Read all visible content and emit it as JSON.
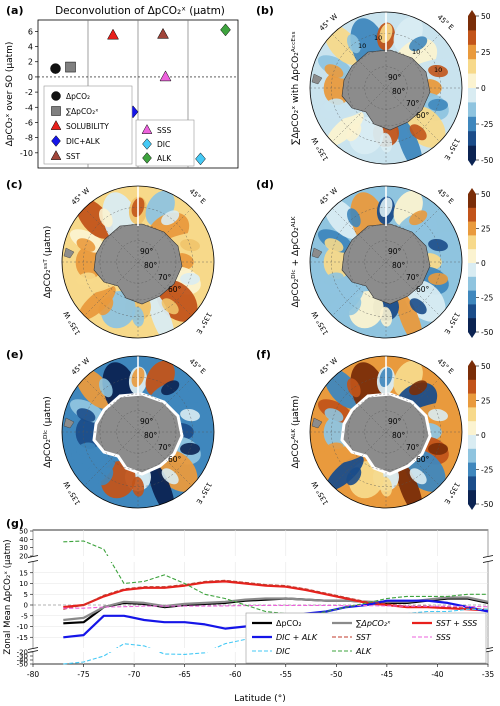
{
  "chart_data": [
    {
      "id": "a",
      "type": "scatter",
      "panel_label": "(a)",
      "title": "Deconvolution of ΔpCO₂ˣ (μatm)",
      "ylabel": "ΔpCO₂ˣ over SO (μatm)",
      "ylim": [
        -12,
        7.5
      ],
      "yticks": [
        -10,
        -8,
        -6,
        -4,
        -2,
        0,
        2,
        4,
        6
      ],
      "points": [
        {
          "name": "ΔpCO₂",
          "x": 0.35,
          "y": 1.1,
          "marker": "circle",
          "color": "#111111"
        },
        {
          "name": "∑ΔpCO₂ˣ",
          "x": 0.65,
          "y": 1.3,
          "marker": "square",
          "color": "#808080"
        },
        {
          "name": "SOLUBILITY",
          "x": 1.5,
          "y": 5.5,
          "marker": "triangle",
          "color": "#e8201c"
        },
        {
          "name": "SST",
          "x": 2.5,
          "y": 5.6,
          "marker": "triangle",
          "color": "#a0453a"
        },
        {
          "name": "SSS",
          "x": 2.55,
          "y": 0.0,
          "marker": "triangle",
          "color": "#ee62dd"
        },
        {
          "name": "DIC+ALK",
          "x": 1.9,
          "y": -4.6,
          "marker": "diamond",
          "color": "#1515e8"
        },
        {
          "name": "DIC",
          "x": 3.25,
          "y": -10.8,
          "marker": "diamond",
          "color": "#45c9f5"
        },
        {
          "name": "ALK",
          "x": 3.75,
          "y": 6.2,
          "marker": "diamond",
          "color": "#3ea33e"
        }
      ],
      "legend_left": [
        {
          "label": "ΔpCO₂",
          "marker": "circle",
          "color": "#111111"
        },
        {
          "label": "∑ΔpCO₂ˣ",
          "marker": "square",
          "color": "#808080"
        },
        {
          "label": "SOLUBILITY",
          "marker": "triangle",
          "color": "#e8201c"
        },
        {
          "label": "DIC+ALK",
          "marker": "diamond",
          "color": "#1515e8"
        },
        {
          "label": "SST",
          "marker": "triangle",
          "color": "#a0453a"
        }
      ],
      "legend_right": [
        {
          "label": "SSS",
          "marker": "triangle",
          "color": "#ee62dd"
        },
        {
          "label": "DIC",
          "marker": "diamond",
          "color": "#45c9f5"
        },
        {
          "label": "ALK",
          "marker": "diamond",
          "color": "#3ea33e"
        }
      ]
    },
    {
      "id": "g",
      "type": "line",
      "panel_label": "(g)",
      "xlabel": "Latitude (°)",
      "ylabel": "Zonal Mean ΔpCO₂ˣ (μatm)",
      "xlim": [
        -80,
        -35
      ],
      "xticks": [
        -80,
        -75,
        -70,
        -65,
        -60,
        -55,
        -50,
        -45,
        -40,
        -35
      ],
      "yticks_top": [
        20,
        30,
        40,
        50
      ],
      "yticks_mid": [
        -20,
        -15,
        -10,
        -5,
        0,
        5,
        10,
        15,
        20
      ],
      "yticks_bot": [
        -50,
        -40,
        -30,
        -20
      ],
      "x": [
        -77,
        -75,
        -73,
        -71,
        -69,
        -67,
        -65,
        -63,
        -61,
        -59,
        -57,
        -55,
        -53,
        -51,
        -49,
        -47,
        -45,
        -43,
        -41,
        -39,
        -37,
        -35
      ],
      "series": [
        {
          "name": "ΔpCO₂",
          "color": "#000000",
          "width": 2.2,
          "dash": "",
          "values": [
            -8.5,
            -8,
            -1,
            1,
            0.5,
            -1,
            0,
            0.5,
            1,
            2,
            2.5,
            3,
            2.5,
            2,
            2,
            1.5,
            1,
            1,
            2,
            3,
            3,
            1
          ]
        },
        {
          "name": "∑ΔpCO₂ˣ",
          "color": "#8a8a8a",
          "width": 2.2,
          "dash": "",
          "values": [
            -7,
            -6,
            -1,
            1.5,
            1,
            -0.5,
            0.5,
            1,
            1.5,
            2.5,
            3,
            3,
            2.5,
            2,
            2,
            1.5,
            1.5,
            1.5,
            2.5,
            3.5,
            3.5,
            1.5
          ]
        },
        {
          "name": "SST + SSS",
          "color": "#e8201c",
          "width": 2.2,
          "dash": "",
          "values": [
            -1,
            0,
            4,
            7,
            8,
            8,
            9,
            10.5,
            11,
            10,
            9,
            8.5,
            7,
            5,
            3,
            1,
            0,
            -1,
            -1,
            -1.5,
            -2,
            -2.5
          ]
        },
        {
          "name": "DIC + ALK",
          "color": "#1515e8",
          "width": 2.2,
          "dash": "",
          "values": [
            -15,
            -14,
            -5,
            -5,
            -7,
            -8,
            -8,
            -9,
            -11,
            -10,
            -9,
            -6,
            -4,
            -3,
            -1,
            0,
            2,
            2,
            2,
            1,
            -1,
            -3
          ]
        },
        {
          "name": "SST",
          "color": "#c0392b",
          "width": 1.1,
          "dash": "4,2",
          "values": [
            -2,
            0,
            4.5,
            7.5,
            8.5,
            8.5,
            9.5,
            11,
            11.5,
            10.5,
            9.5,
            9,
            7.5,
            5.5,
            3.5,
            1.5,
            0.5,
            -0.5,
            -0.5,
            -1,
            -1.5,
            -2
          ]
        },
        {
          "name": "SSS",
          "color": "#ee62dd",
          "width": 1.1,
          "dash": "4,2",
          "values": [
            -1.5,
            -1.5,
            -1,
            -0.8,
            -0.5,
            -0.5,
            -0.5,
            -0.5,
            -0.4,
            -0.3,
            -0.2,
            -0.2,
            -0.2,
            -0.2,
            -0.3,
            -0.3,
            -0.4,
            -0.5,
            -0.6,
            -0.6,
            -0.7,
            -0.8
          ]
        },
        {
          "name": "DIC",
          "color": "#45c9f5",
          "width": 1.1,
          "dash": "4,2",
          "values": [
            -50,
            -45,
            -30,
            -18,
            -19,
            -25,
            -26,
            -22,
            -18,
            -16,
            -14,
            -12,
            -10,
            -8,
            -6,
            -5,
            -4,
            -4,
            -3,
            -3,
            -2,
            -2
          ]
        },
        {
          "name": "ALK",
          "color": "#3ea33e",
          "width": 1.1,
          "dash": "4,2",
          "values": [
            37,
            38,
            28,
            10,
            11,
            14,
            10,
            5,
            3,
            0,
            -3,
            -4,
            -5,
            -3,
            -1,
            1,
            3,
            4,
            4,
            4,
            5,
            5
          ]
        }
      ],
      "legend": [
        {
          "label": "ΔpCO₂",
          "color": "#000000",
          "width": 2.2,
          "dash": ""
        },
        {
          "label": "DIC + ALK",
          "color": "#1515e8",
          "width": 2.2,
          "dash": ""
        },
        {
          "label": "DIC",
          "color": "#45c9f5",
          "width": 1.1,
          "dash": "4,2"
        },
        {
          "label": "∑ΔpCO₂ˣ",
          "color": "#8a8a8a",
          "width": 2.2,
          "dash": ""
        },
        {
          "label": "SST",
          "color": "#c0392b",
          "width": 1.1,
          "dash": "4,2"
        },
        {
          "label": "ALK",
          "color": "#3ea33e",
          "width": 1.1,
          "dash": "4,2"
        },
        {
          "label": "SST + SSS",
          "color": "#e8201c",
          "width": 2.2,
          "dash": ""
        },
        {
          "label": "SSS",
          "color": "#ee62dd",
          "width": 1.1,
          "dash": "4,2"
        }
      ]
    }
  ],
  "maps": {
    "colorbar_ticks": [
      50,
      25,
      0,
      -25,
      -50
    ],
    "colorbar_colors": [
      "#7a2d08",
      "#c2541a",
      "#e99a3d",
      "#f7d98a",
      "#fbf3d0",
      "#d9ecf2",
      "#8fc4df",
      "#3f87bd",
      "#1b4d8a",
      "#0b2352"
    ],
    "lon_labels": {
      "nw": "45° W",
      "ne": "45° E",
      "sw": "135° W",
      "se": "135° E"
    },
    "lat_labels": [
      "90°",
      "80°",
      "70°",
      "60°"
    ],
    "panels": [
      {
        "id": "b",
        "panel_label": "(b)",
        "ylabel": "∑ΔpCO₂ˣ with ΔpCO₂ᴬᶜᶜᴱˢˢ"
      },
      {
        "id": "c",
        "panel_label": "(c)",
        "ylabel": "ΔpCO₂ˢˢᵀ (μatm)"
      },
      {
        "id": "d",
        "panel_label": "(d)",
        "ylabel": "ΔpCO₂ᴰᴵᶜ + ΔpCO₂ᴬᴸᴷ"
      },
      {
        "id": "e",
        "panel_label": "(e)",
        "ylabel": "ΔpCO₂ᴰᴵᶜ (μatm)"
      },
      {
        "id": "f",
        "panel_label": "(f)",
        "ylabel": "ΔpCO₂ᴬᴸᴷ (μatm)"
      }
    ],
    "contour_labels_b": [
      "10",
      "10",
      "10",
      "10"
    ]
  }
}
